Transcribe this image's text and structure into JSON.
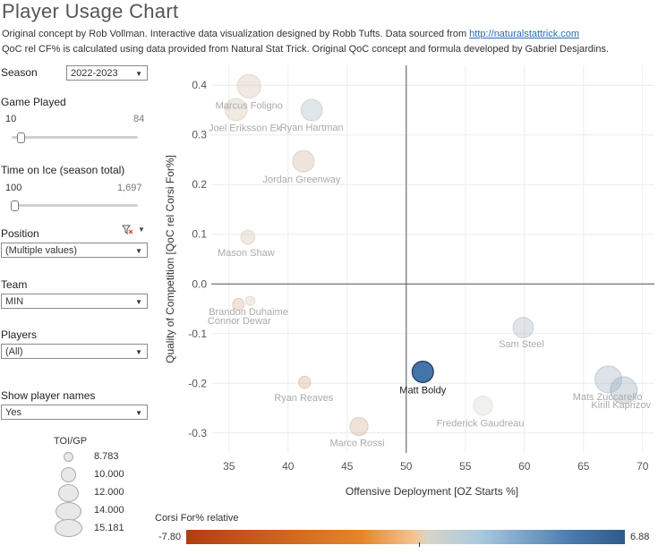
{
  "header": {
    "title": "Player Usage Chart",
    "line1_text": "Original concept by Rob Vollman.  Interactive data visualization designed by Robb Tufts.  Data sourced from ",
    "line1_link": "http://naturalstattrick.com",
    "line2_text": "QoC rel CF% is calculated using data provided from Natural Stat Trick.  Original QoC concept and formula developed by Gabriel Desjardins."
  },
  "filters": {
    "season": {
      "label": "Season",
      "value": "2022-2023"
    },
    "games_played": {
      "label": "Game Played",
      "min": "10",
      "max": "84",
      "fraction": 0.04
    },
    "toi": {
      "label": "Time on Ice (season total)",
      "min": "100",
      "max": "1,697",
      "fraction": 0.0
    },
    "position": {
      "label": "Position",
      "value": "(Multiple values)"
    },
    "team": {
      "label": "Team",
      "value": "MIN"
    },
    "players": {
      "label": "Players",
      "value": "(All)"
    },
    "show_names": {
      "label": "Show player names",
      "value": "Yes"
    }
  },
  "size_legend": {
    "title": "TOI/GP",
    "items": [
      "8.783",
      "10.000",
      "12.000",
      "14.000",
      "15.181"
    ]
  },
  "color_legend": {
    "title": "Corsi For% relative",
    "min": "-7.80",
    "max": "6.88"
  },
  "colors": {
    "neg": "#c0622f",
    "mid": "#d8d4c8",
    "pos": "#3a6ea5",
    "grid": "#ececec",
    "axis_line": "#555555"
  },
  "chart_data": {
    "type": "scatter",
    "title": "",
    "xlabel": "Offensive Deployment [OZ Starts %]",
    "ylabel": "Quality of Competition [QoC rel Corsi For%]",
    "xlim": [
      33.5,
      71
    ],
    "ylim": [
      -0.34,
      0.44
    ],
    "xticks": [
      35,
      40,
      45,
      50,
      55,
      60,
      65,
      70
    ],
    "yticks": [
      0.4,
      0.3,
      0.2,
      0.1,
      0.0,
      -0.1,
      -0.2,
      -0.3
    ],
    "ytick_labels": [
      "0.4",
      "0.3",
      "0.2",
      "0.1",
      "0.0",
      "-0.1",
      "-0.2",
      "-0.3"
    ],
    "ref_x": 50,
    "ref_y": 0,
    "points": [
      {
        "name": "Marcus Foligno",
        "x": 36.7,
        "y": 0.398,
        "toi": 14.0,
        "cf": -1.5,
        "label_dy": 25,
        "label_dx": 0,
        "highlight": false
      },
      {
        "name": "Joel Eriksson Ek",
        "x": 35.6,
        "y": 0.351,
        "toi": 13.5,
        "cf": -1.2,
        "label_dy": 24,
        "label_dx": 10,
        "highlight": false
      },
      {
        "name": "Ryan Hartman",
        "x": 42.0,
        "y": 0.35,
        "toi": 13.2,
        "cf": 2.0,
        "label_dy": 23,
        "label_dx": 0,
        "highlight": false
      },
      {
        "name": "Jordan Greenway",
        "x": 41.3,
        "y": 0.247,
        "toi": 13.3,
        "cf": -2.3,
        "label_dy": 24,
        "label_dx": -2,
        "highlight": false
      },
      {
        "name": "Mason Shaw",
        "x": 36.6,
        "y": 0.094,
        "toi": 10.6,
        "cf": -1.4,
        "label_dy": 21,
        "label_dx": -2,
        "highlight": false
      },
      {
        "name": "Brandon Duhaime",
        "x": 36.8,
        "y": -0.034,
        "toi": 8.9,
        "cf": -0.8,
        "label_dy": 16,
        "label_dx": -2,
        "highlight": false
      },
      {
        "name": "Connor Dewar",
        "x": 35.8,
        "y": -0.041,
        "toi": 9.8,
        "cf": -2.5,
        "label_dy": 22,
        "label_dx": 1,
        "highlight": false
      },
      {
        "name": "Ryan Reaves",
        "x": 41.4,
        "y": -0.198,
        "toi": 9.9,
        "cf": -3.0,
        "label_dy": 21,
        "label_dx": -1,
        "highlight": false
      },
      {
        "name": "Marco Rossi",
        "x": 46.0,
        "y": -0.287,
        "toi": 12.1,
        "cf": -2.8,
        "label_dy": 22,
        "label_dx": -2,
        "highlight": false
      },
      {
        "name": "Matt Boldy",
        "x": 51.4,
        "y": -0.177,
        "toi": 13.2,
        "cf": 6.88,
        "label_dy": 24,
        "label_dx": 0,
        "highlight": true
      },
      {
        "name": "Frederick Gaudreau",
        "x": 56.5,
        "y": -0.245,
        "toi": 12.5,
        "cf": 0.0,
        "label_dy": 23,
        "label_dx": -3,
        "highlight": false
      },
      {
        "name": "Sam Steel",
        "x": 59.9,
        "y": -0.088,
        "toi": 12.9,
        "cf": 2.2,
        "label_dy": 22,
        "label_dx": -2,
        "highlight": false
      },
      {
        "name": "Mats Zuccarello",
        "x": 67.1,
        "y": -0.192,
        "toi": 15.181,
        "cf": 2.6,
        "label_dy": 23,
        "label_dx": -1,
        "highlight": false
      },
      {
        "name": "Kirill Kaprizov",
        "x": 68.4,
        "y": -0.214,
        "toi": 15.181,
        "cf": 3.0,
        "label_dy": 20,
        "label_dx": -3,
        "highlight": false
      }
    ]
  }
}
